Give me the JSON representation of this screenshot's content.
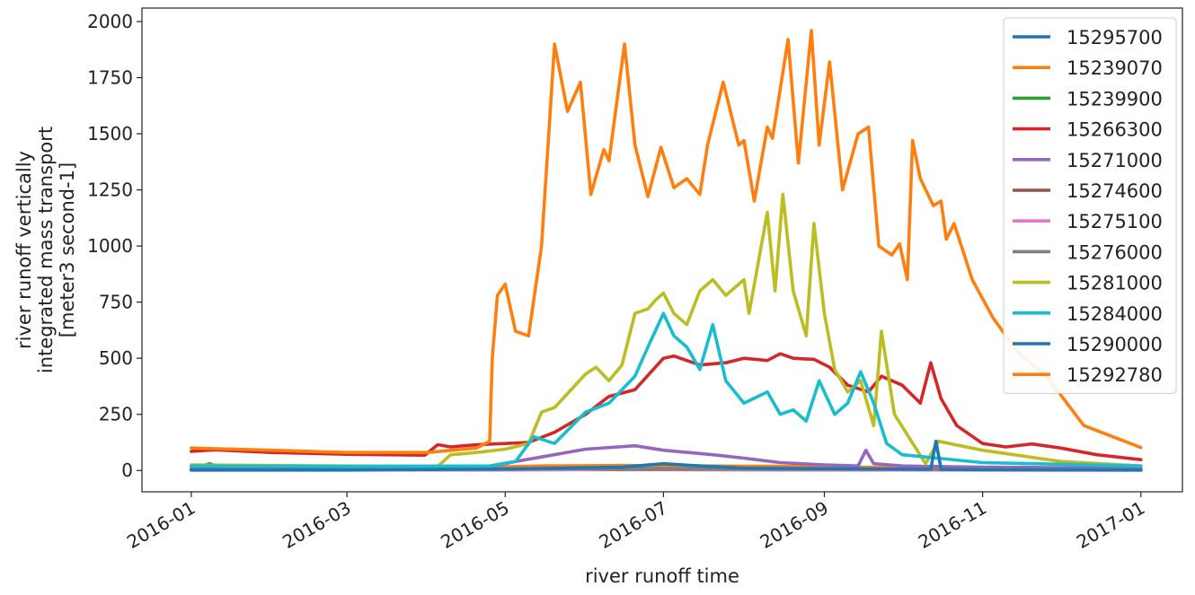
{
  "chart_data": {
    "type": "line",
    "xlabel": "river runoff time",
    "ylabel_lines": [
      "river runoff vertically",
      "integrated mass transport",
      "[meter3 second-1]"
    ],
    "x_ticks": [
      "2016-01",
      "2016-03",
      "2016-05",
      "2016-07",
      "2016-09",
      "2016-11",
      "2017-01"
    ],
    "y_ticks": [
      "0",
      "250",
      "500",
      "750",
      "1000",
      "1250",
      "1500",
      "1750",
      "2000"
    ],
    "xlim": [
      "2015-12-13",
      "2017-01-17"
    ],
    "ylim": [
      -95,
      2060
    ],
    "grid": false,
    "legend_position": "top-right",
    "series": [
      {
        "name": "15295700",
        "color": "#1f77b4",
        "points": [
          [
            "2016-01-01",
            3
          ],
          [
            "2016-01-08",
            30
          ],
          [
            "2016-01-15",
            5
          ],
          [
            "2016-03-01",
            4
          ],
          [
            "2016-05-01",
            5
          ],
          [
            "2016-06-01",
            8
          ],
          [
            "2016-07-01",
            7
          ],
          [
            "2016-09-01",
            5
          ],
          [
            "2016-11-01",
            3
          ],
          [
            "2017-01-01",
            2
          ]
        ]
      },
      {
        "name": "15239070",
        "color": "#ff7f0e",
        "points": [
          [
            "2016-01-01",
            8
          ],
          [
            "2016-02-01",
            8
          ],
          [
            "2016-03-01",
            7
          ],
          [
            "2016-04-01",
            9
          ],
          [
            "2016-04-25",
            15
          ],
          [
            "2016-05-15",
            20
          ],
          [
            "2016-06-15",
            22
          ],
          [
            "2016-07-15",
            20
          ],
          [
            "2016-08-15",
            18
          ],
          [
            "2016-09-15",
            14
          ],
          [
            "2016-10-15",
            10
          ],
          [
            "2016-11-15",
            8
          ],
          [
            "2017-01-01",
            6
          ]
        ]
      },
      {
        "name": "15239900",
        "color": "#2ca02c",
        "points": [
          [
            "2016-01-01",
            2
          ],
          [
            "2016-03-01",
            2
          ],
          [
            "2016-05-01",
            3
          ],
          [
            "2016-07-01",
            4
          ],
          [
            "2016-09-01",
            3
          ],
          [
            "2016-11-01",
            2
          ],
          [
            "2017-01-01",
            2
          ]
        ]
      },
      {
        "name": "15266300",
        "color": "#d62728",
        "points": [
          [
            "2016-01-01",
            85
          ],
          [
            "2016-01-10",
            92
          ],
          [
            "2016-02-01",
            80
          ],
          [
            "2016-03-01",
            72
          ],
          [
            "2016-03-31",
            68
          ],
          [
            "2016-04-05",
            115
          ],
          [
            "2016-04-10",
            105
          ],
          [
            "2016-04-20",
            115
          ],
          [
            "2016-05-01",
            120
          ],
          [
            "2016-05-10",
            125
          ],
          [
            "2016-05-20",
            170
          ],
          [
            "2016-06-01",
            250
          ],
          [
            "2016-06-10",
            330
          ],
          [
            "2016-06-20",
            360
          ],
          [
            "2016-07-01",
            500
          ],
          [
            "2016-07-05",
            510
          ],
          [
            "2016-07-15",
            470
          ],
          [
            "2016-07-25",
            480
          ],
          [
            "2016-08-01",
            500
          ],
          [
            "2016-08-10",
            490
          ],
          [
            "2016-08-15",
            520
          ],
          [
            "2016-08-20",
            500
          ],
          [
            "2016-08-28",
            495
          ],
          [
            "2016-09-03",
            460
          ],
          [
            "2016-09-10",
            380
          ],
          [
            "2016-09-18",
            350
          ],
          [
            "2016-09-23",
            420
          ],
          [
            "2016-10-01",
            380
          ],
          [
            "2016-10-08",
            300
          ],
          [
            "2016-10-12",
            480
          ],
          [
            "2016-10-16",
            320
          ],
          [
            "2016-10-22",
            200
          ],
          [
            "2016-11-01",
            120
          ],
          [
            "2016-11-10",
            105
          ],
          [
            "2016-11-20",
            118
          ],
          [
            "2016-12-01",
            100
          ],
          [
            "2016-12-15",
            70
          ],
          [
            "2017-01-01",
            48
          ]
        ]
      },
      {
        "name": "15271000",
        "color": "#9467bd",
        "points": [
          [
            "2016-01-01",
            10
          ],
          [
            "2016-03-01",
            8
          ],
          [
            "2016-04-25",
            15
          ],
          [
            "2016-05-05",
            40
          ],
          [
            "2016-05-15",
            60
          ],
          [
            "2016-06-01",
            95
          ],
          [
            "2016-06-20",
            110
          ],
          [
            "2016-07-01",
            90
          ],
          [
            "2016-07-20",
            70
          ],
          [
            "2016-08-01",
            55
          ],
          [
            "2016-08-15",
            35
          ],
          [
            "2016-09-01",
            25
          ],
          [
            "2016-09-14",
            20
          ],
          [
            "2016-09-17",
            90
          ],
          [
            "2016-09-20",
            30
          ],
          [
            "2016-10-01",
            20
          ],
          [
            "2016-11-01",
            15
          ],
          [
            "2017-01-01",
            10
          ]
        ]
      },
      {
        "name": "15274600",
        "color": "#8c564b",
        "points": [
          [
            "2016-01-01",
            2
          ],
          [
            "2016-06-01",
            4
          ],
          [
            "2016-09-01",
            3
          ],
          [
            "2017-01-01",
            2
          ]
        ]
      },
      {
        "name": "15275100",
        "color": "#e377c2",
        "points": [
          [
            "2016-01-01",
            1
          ],
          [
            "2016-05-15",
            3
          ],
          [
            "2016-06-15",
            6
          ],
          [
            "2016-08-01",
            4
          ],
          [
            "2016-10-01",
            2
          ],
          [
            "2017-01-01",
            1
          ]
        ]
      },
      {
        "name": "15276000",
        "color": "#7f7f7f",
        "points": [
          [
            "2016-01-01",
            5
          ],
          [
            "2016-06-01",
            8
          ],
          [
            "2016-09-01",
            6
          ],
          [
            "2017-01-01",
            4
          ]
        ]
      },
      {
        "name": "15281000",
        "color": "#bcbd22",
        "points": [
          [
            "2016-01-01",
            25
          ],
          [
            "2016-02-01",
            22
          ],
          [
            "2016-03-01",
            20
          ],
          [
            "2016-04-05",
            18
          ],
          [
            "2016-04-10",
            70
          ],
          [
            "2016-04-20",
            80
          ],
          [
            "2016-05-01",
            95
          ],
          [
            "2016-05-10",
            120
          ],
          [
            "2016-05-15",
            260
          ],
          [
            "2016-05-20",
            280
          ],
          [
            "2016-06-01",
            430
          ],
          [
            "2016-06-05",
            460
          ],
          [
            "2016-06-10",
            400
          ],
          [
            "2016-06-15",
            470
          ],
          [
            "2016-06-20",
            700
          ],
          [
            "2016-06-25",
            720
          ],
          [
            "2016-06-28",
            760
          ],
          [
            "2016-07-01",
            790
          ],
          [
            "2016-07-05",
            700
          ],
          [
            "2016-07-10",
            650
          ],
          [
            "2016-07-15",
            800
          ],
          [
            "2016-07-20",
            850
          ],
          [
            "2016-07-25",
            780
          ],
          [
            "2016-08-01",
            850
          ],
          [
            "2016-08-03",
            700
          ],
          [
            "2016-08-10",
            1150
          ],
          [
            "2016-08-13",
            800
          ],
          [
            "2016-08-16",
            1230
          ],
          [
            "2016-08-20",
            800
          ],
          [
            "2016-08-25",
            600
          ],
          [
            "2016-08-28",
            1100
          ],
          [
            "2016-09-01",
            700
          ],
          [
            "2016-09-05",
            450
          ],
          [
            "2016-09-10",
            350
          ],
          [
            "2016-09-15",
            400
          ],
          [
            "2016-09-20",
            200
          ],
          [
            "2016-09-23",
            620
          ],
          [
            "2016-09-28",
            250
          ],
          [
            "2016-10-10",
            30
          ],
          [
            "2016-10-15",
            130
          ],
          [
            "2016-11-01",
            90
          ],
          [
            "2016-12-01",
            40
          ],
          [
            "2017-01-01",
            20
          ]
        ]
      },
      {
        "name": "15284000",
        "color": "#17becf",
        "points": [
          [
            "2016-01-01",
            20
          ],
          [
            "2016-03-01",
            18
          ],
          [
            "2016-04-25",
            20
          ],
          [
            "2016-05-05",
            40
          ],
          [
            "2016-05-12",
            150
          ],
          [
            "2016-05-20",
            120
          ],
          [
            "2016-06-01",
            260
          ],
          [
            "2016-06-10",
            300
          ],
          [
            "2016-06-20",
            420
          ],
          [
            "2016-06-25",
            550
          ],
          [
            "2016-07-01",
            700
          ],
          [
            "2016-07-05",
            600
          ],
          [
            "2016-07-10",
            550
          ],
          [
            "2016-07-15",
            450
          ],
          [
            "2016-07-20",
            650
          ],
          [
            "2016-07-25",
            400
          ],
          [
            "2016-08-01",
            300
          ],
          [
            "2016-08-10",
            350
          ],
          [
            "2016-08-15",
            250
          ],
          [
            "2016-08-20",
            270
          ],
          [
            "2016-08-25",
            220
          ],
          [
            "2016-08-30",
            400
          ],
          [
            "2016-09-05",
            250
          ],
          [
            "2016-09-10",
            300
          ],
          [
            "2016-09-15",
            440
          ],
          [
            "2016-09-20",
            300
          ],
          [
            "2016-09-25",
            120
          ],
          [
            "2016-10-01",
            70
          ],
          [
            "2016-11-01",
            35
          ],
          [
            "2017-01-01",
            20
          ]
        ]
      },
      {
        "name": "15290000",
        "color": "#1f77b4",
        "points": [
          [
            "2016-01-01",
            2
          ],
          [
            "2016-03-01",
            2
          ],
          [
            "2016-05-01",
            6
          ],
          [
            "2016-06-15",
            15
          ],
          [
            "2016-07-01",
            30
          ],
          [
            "2016-07-15",
            20
          ],
          [
            "2016-08-01",
            10
          ],
          [
            "2016-10-12",
            5
          ],
          [
            "2016-10-14",
            130
          ],
          [
            "2016-10-16",
            5
          ],
          [
            "2016-11-01",
            3
          ],
          [
            "2017-01-01",
            2
          ]
        ]
      },
      {
        "name": "15292780",
        "color": "#ff7f0e",
        "points": [
          [
            "2016-01-01",
            100
          ],
          [
            "2016-02-01",
            90
          ],
          [
            "2016-03-01",
            80
          ],
          [
            "2016-04-01",
            80
          ],
          [
            "2016-04-20",
            100
          ],
          [
            "2016-04-25",
            130
          ],
          [
            "2016-04-26",
            500
          ],
          [
            "2016-04-28",
            780
          ],
          [
            "2016-05-01",
            830
          ],
          [
            "2016-05-05",
            620
          ],
          [
            "2016-05-10",
            600
          ],
          [
            "2016-05-15",
            1000
          ],
          [
            "2016-05-20",
            1900
          ],
          [
            "2016-05-25",
            1600
          ],
          [
            "2016-05-30",
            1730
          ],
          [
            "2016-06-03",
            1230
          ],
          [
            "2016-06-08",
            1430
          ],
          [
            "2016-06-10",
            1380
          ],
          [
            "2016-06-16",
            1900
          ],
          [
            "2016-06-20",
            1450
          ],
          [
            "2016-06-25",
            1220
          ],
          [
            "2016-06-30",
            1440
          ],
          [
            "2016-07-05",
            1260
          ],
          [
            "2016-07-10",
            1300
          ],
          [
            "2016-07-15",
            1230
          ],
          [
            "2016-07-18",
            1450
          ],
          [
            "2016-07-24",
            1730
          ],
          [
            "2016-07-30",
            1450
          ],
          [
            "2016-08-01",
            1470
          ],
          [
            "2016-08-05",
            1200
          ],
          [
            "2016-08-10",
            1530
          ],
          [
            "2016-08-12",
            1480
          ],
          [
            "2016-08-18",
            1920
          ],
          [
            "2016-08-22",
            1370
          ],
          [
            "2016-08-27",
            1960
          ],
          [
            "2016-08-30",
            1450
          ],
          [
            "2016-09-03",
            1820
          ],
          [
            "2016-09-08",
            1250
          ],
          [
            "2016-09-14",
            1500
          ],
          [
            "2016-09-18",
            1530
          ],
          [
            "2016-09-22",
            1000
          ],
          [
            "2016-09-27",
            960
          ],
          [
            "2016-09-30",
            1010
          ],
          [
            "2016-10-03",
            850
          ],
          [
            "2016-10-05",
            1470
          ],
          [
            "2016-10-08",
            1300
          ],
          [
            "2016-10-13",
            1180
          ],
          [
            "2016-10-16",
            1200
          ],
          [
            "2016-10-18",
            1030
          ],
          [
            "2016-10-21",
            1100
          ],
          [
            "2016-10-28",
            850
          ],
          [
            "2016-11-05",
            680
          ],
          [
            "2016-11-15",
            520
          ],
          [
            "2016-11-25",
            430
          ],
          [
            "2016-12-10",
            200
          ],
          [
            "2017-01-01",
            102
          ]
        ]
      }
    ]
  }
}
